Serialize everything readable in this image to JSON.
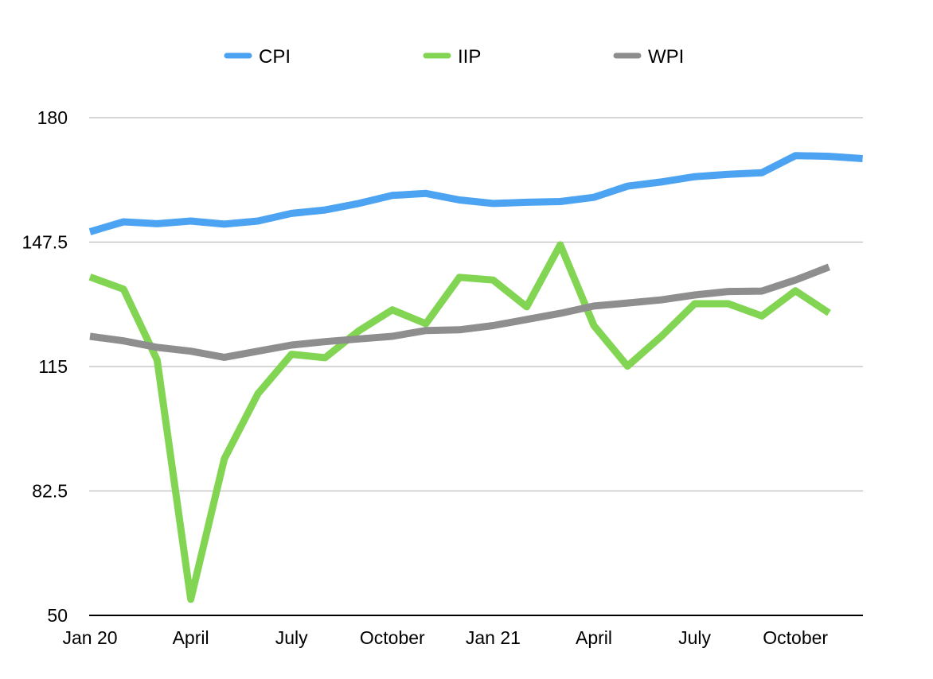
{
  "chart_data": {
    "type": "line",
    "title": "",
    "xlabel": "",
    "ylabel": "",
    "ylim": [
      50,
      180
    ],
    "yticks": [
      50,
      82.5,
      115,
      147.5,
      180
    ],
    "ytick_labels": [
      "50",
      "82.5",
      "115",
      "147.5",
      "180"
    ],
    "x": [
      "Jan 2020",
      "Feb 2020",
      "Mar 2020",
      "Apr 2020",
      "May 2020",
      "Jun 2020",
      "Jul 2020",
      "Aug 2020",
      "Sep 2020",
      "Oct 2020",
      "Nov 2020",
      "Dec 2020",
      "Jan 2021",
      "Feb 2021",
      "Mar 2021",
      "Apr 2021",
      "May 2021",
      "Jun 2021",
      "Jul 2021",
      "Aug 2021",
      "Sep 2021",
      "Oct 2021",
      "Nov 2021",
      "Dec 2021"
    ],
    "xtick_labels": [
      {
        "index": 0,
        "label": "Jan 20"
      },
      {
        "index": 3,
        "label": "April"
      },
      {
        "index": 6,
        "label": "July"
      },
      {
        "index": 9,
        "label": "October"
      },
      {
        "index": 12,
        "label": "Jan 21"
      },
      {
        "index": 15,
        "label": "April"
      },
      {
        "index": 18,
        "label": "July"
      },
      {
        "index": 21,
        "label": "October"
      }
    ],
    "grid": true,
    "legend_position": "top",
    "series": [
      {
        "name": "CPI",
        "color": "#4ba3f2",
        "values": [
          150.2,
          152.8,
          152.3,
          153.0,
          152.2,
          153.0,
          155.0,
          155.9,
          157.6,
          159.7,
          160.2,
          158.5,
          157.6,
          157.9,
          158.1,
          159.2,
          162.1,
          163.2,
          164.6,
          165.2,
          165.6,
          170.1,
          169.9,
          169.3
        ]
      },
      {
        "name": "IIP",
        "color": "#82d552",
        "values": [
          138.4,
          135.2,
          116.7,
          54.2,
          90.9,
          107.9,
          118.2,
          117.3,
          124.3,
          129.8,
          126.2,
          138.3,
          137.6,
          130.6,
          146.8,
          125.7,
          115.1,
          122.8,
          131.4,
          131.4,
          128.2,
          134.8,
          129.0,
          null
        ]
      },
      {
        "name": "WPI",
        "color": "#8e8e8e",
        "values": [
          122.9,
          121.7,
          120.0,
          119.0,
          117.4,
          119.0,
          120.6,
          121.5,
          122.2,
          122.9,
          124.4,
          124.6,
          125.7,
          127.3,
          128.9,
          130.8,
          131.6,
          132.4,
          133.7,
          134.6,
          134.7,
          137.6,
          141.0,
          null
        ]
      }
    ]
  }
}
